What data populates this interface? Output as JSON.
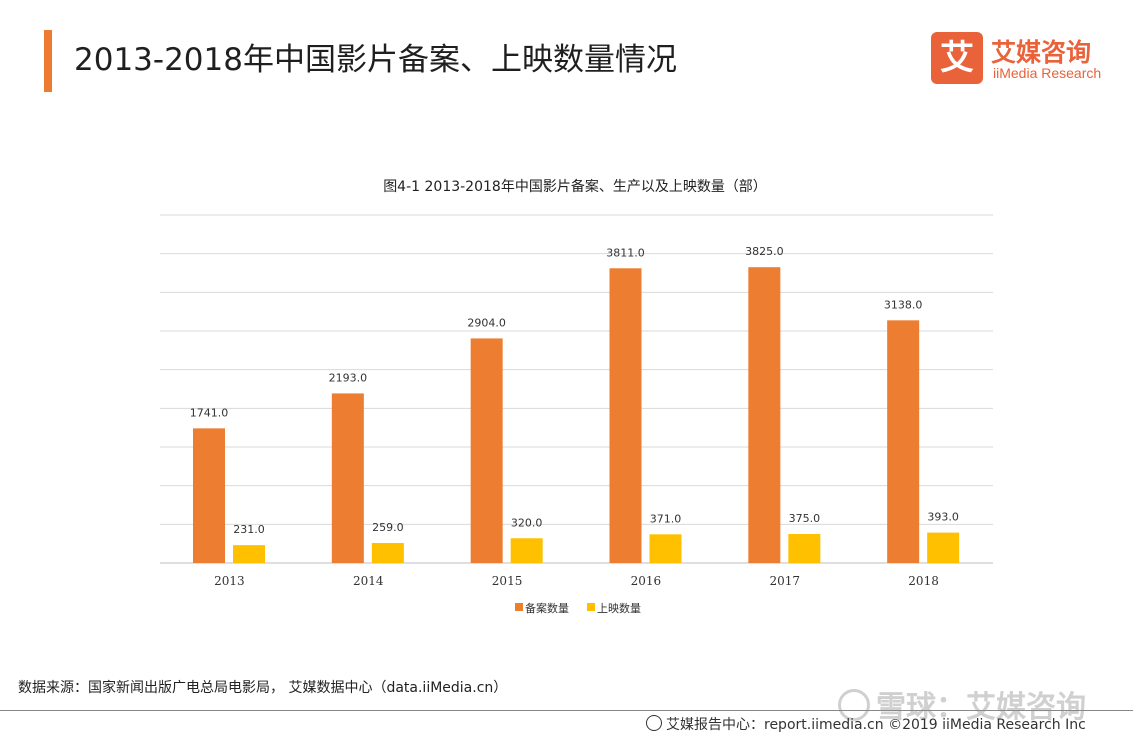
{
  "header": {
    "title": "2013-2018年中国影片备案、上映数量情况",
    "accent_color": "#ec7a32"
  },
  "logo": {
    "mark": "艾",
    "name": "艾媒咨询",
    "en": "iiMedia Research",
    "color": "#e9623a"
  },
  "chart_data": {
    "type": "bar",
    "title": "图4-1 2013-2018年中国影片备案、生产以及上映数量（部）",
    "categories": [
      "2013",
      "2014",
      "2015",
      "2016",
      "2017",
      "2018"
    ],
    "series": [
      {
        "name": "备案数量",
        "color": "#ed7d31",
        "values": [
          1741.0,
          2193.0,
          2904.0,
          3811.0,
          3825.0,
          3138.0
        ]
      },
      {
        "name": "上映数量",
        "color": "#ffc000",
        "values": [
          231.0,
          259.0,
          320.0,
          371.0,
          375.0,
          393.0
        ]
      }
    ],
    "value_labels": [
      [
        "1741.0",
        "2193.0",
        "2904.0",
        "3811.0",
        "3825.0",
        "3138.0"
      ],
      [
        "231.0",
        "259.0",
        "320.0",
        "371.0",
        "375.0",
        "393.0"
      ]
    ],
    "ylim": [
      0,
      4500
    ],
    "grid": true,
    "legend_position": "bottom-center",
    "xlabel": "",
    "ylabel": ""
  },
  "footer": {
    "source": "数据来源：国家新闻出版广电总局电影局， 艾媒数据中心（data.iiMedia.cn）",
    "credit": "艾媒报告中心：report.iimedia.cn  ©2019  iiMedia Research Inc",
    "watermark": "雪球：艾媒咨询"
  }
}
